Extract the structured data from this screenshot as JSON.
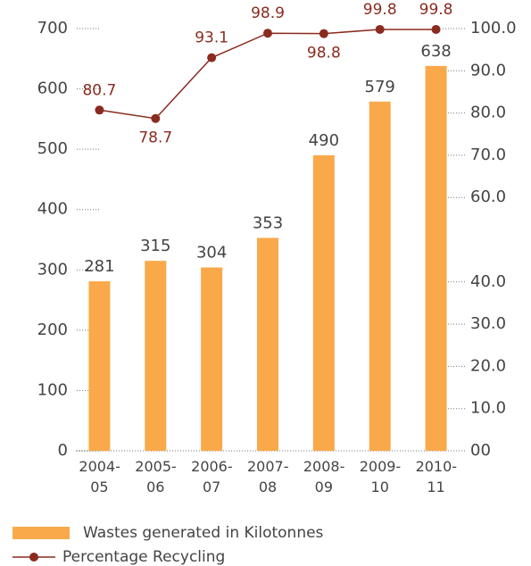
{
  "chart_data": {
    "type": "bar-line",
    "categories": [
      "2004-05",
      "2005-06",
      "2006-07",
      "2007-08",
      "2008-09",
      "2009-10",
      "2010-11"
    ],
    "series": [
      {
        "name": "Wastes generated in Kilotonnes",
        "type": "bar",
        "color": "#f9a94a",
        "values": [
          281,
          315,
          304,
          353,
          490,
          579,
          638
        ]
      },
      {
        "name": "Percentage Recycling",
        "type": "line",
        "axis": "y2",
        "color": "#8b2b1f",
        "values": [
          80.7,
          78.7,
          93.1,
          98.9,
          98.8,
          99.8,
          99.8
        ]
      }
    ],
    "ylim": [
      0,
      700
    ],
    "yticks": [
      0,
      100,
      200,
      300,
      400,
      500,
      600,
      700
    ],
    "y2lim": [
      0,
      100
    ],
    "y2ticks": [
      {
        "value": 0,
        "label": "00"
      },
      {
        "value": 10,
        "label": "10.0"
      },
      {
        "value": 20,
        "label": "20.0"
      },
      {
        "value": 30,
        "label": "30.0"
      },
      {
        "value": 40,
        "label": "40.0"
      },
      {
        "value": 60,
        "label": "60.0"
      },
      {
        "value": 70,
        "label": "70.0"
      },
      {
        "value": 80,
        "label": "80.0"
      },
      {
        "value": 90,
        "label": "90.0"
      },
      {
        "value": 100,
        "label": "100.0"
      }
    ]
  }
}
